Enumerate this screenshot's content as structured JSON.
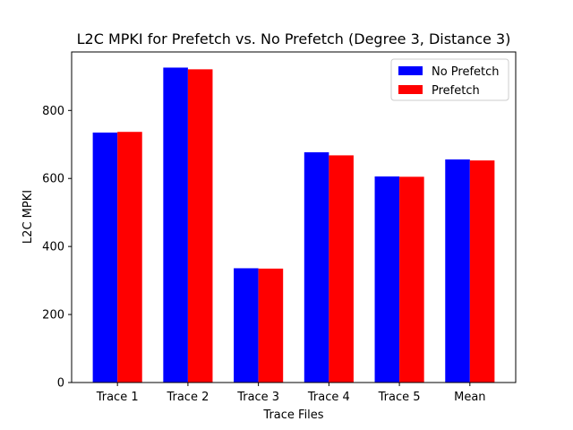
{
  "chart_data": {
    "type": "bar",
    "title": "L2C MPKI for Prefetch vs. No Prefetch (Degree 3, Distance 3)",
    "xlabel": "Trace Files",
    "ylabel": "L2C MPKI",
    "categories": [
      "Trace 1",
      "Trace 2",
      "Trace 3",
      "Trace 4",
      "Trace 5",
      "Mean"
    ],
    "series": [
      {
        "name": "No Prefetch",
        "color": "#0000ff",
        "values": [
          735,
          926,
          336,
          677,
          606,
          656
        ]
      },
      {
        "name": "Prefetch",
        "color": "#ff0000",
        "values": [
          737,
          921,
          335,
          668,
          605,
          653
        ]
      }
    ],
    "ylim": [
      0,
      972
    ],
    "yticks": [
      0,
      200,
      400,
      600,
      800
    ],
    "grid": false,
    "legend_position": "top-right"
  }
}
